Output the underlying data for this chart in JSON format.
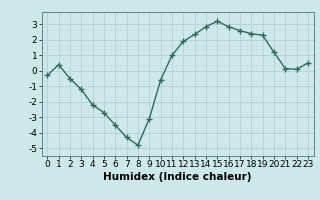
{
  "x": [
    0,
    1,
    2,
    3,
    4,
    5,
    6,
    7,
    8,
    9,
    10,
    11,
    12,
    13,
    14,
    15,
    16,
    17,
    18,
    19,
    20,
    21,
    22,
    23
  ],
  "y": [
    -0.3,
    0.4,
    -0.5,
    -1.2,
    -2.2,
    -2.7,
    -3.5,
    -4.3,
    -4.8,
    -3.1,
    -0.6,
    1.0,
    1.9,
    2.35,
    2.85,
    3.2,
    2.85,
    2.6,
    2.4,
    2.3,
    1.2,
    0.15,
    0.1,
    0.5
  ],
  "line_color": "#2e6b5e",
  "marker": "+",
  "marker_size": 4,
  "xlabel": "Humidex (Indice chaleur)",
  "xlim": [
    -0.5,
    23.5
  ],
  "ylim": [
    -5.5,
    3.8
  ],
  "yticks": [
    -5,
    -4,
    -3,
    -2,
    -1,
    0,
    1,
    2,
    3
  ],
  "xticks": [
    0,
    1,
    2,
    3,
    4,
    5,
    6,
    7,
    8,
    9,
    10,
    11,
    12,
    13,
    14,
    15,
    16,
    17,
    18,
    19,
    20,
    21,
    22,
    23
  ],
  "bg_color": "#cde8e8",
  "grid_color": "#b8d4d4",
  "tick_labelsize": 6.5,
  "xlabel_fontsize": 7.5,
  "line_width": 1.0
}
